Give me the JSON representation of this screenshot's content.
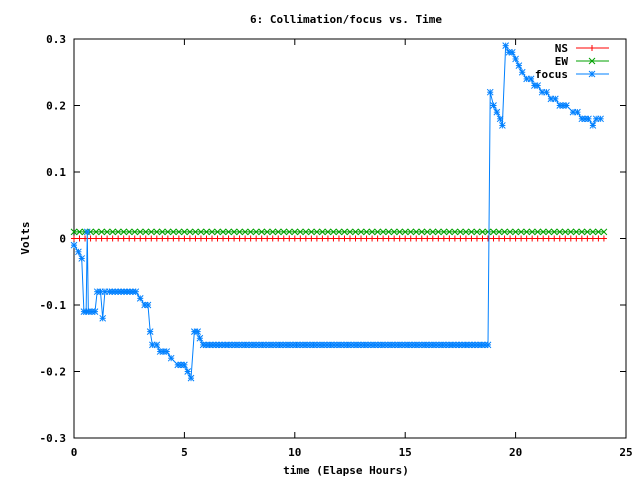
{
  "chart_data": {
    "type": "line",
    "title": "6: Collimation/focus vs. Time",
    "xlabel": "time (Elapse Hours)",
    "ylabel": "Volts",
    "xlim": [
      0,
      25
    ],
    "ylim": [
      -0.3,
      0.3
    ],
    "xticks": [
      0,
      5,
      10,
      15,
      20,
      25
    ],
    "yticks": [
      -0.3,
      -0.2,
      -0.1,
      0,
      0.1,
      0.2,
      0.3
    ],
    "xtick_labels": [
      "0",
      "5",
      "10",
      "15",
      "20",
      "25"
    ],
    "ytick_labels": [
      "-0.3",
      "-0.2",
      "-0.1",
      "0",
      "0.1",
      "0.2",
      "0.3"
    ],
    "legend_position": "top-right",
    "grid": false,
    "series": [
      {
        "name": "NS",
        "color": "#ff0000",
        "marker": "plus",
        "points": [
          [
            0,
            0
          ],
          [
            24,
            0
          ]
        ]
      },
      {
        "name": "EW",
        "color": "#00a000",
        "marker": "cross",
        "points": [
          [
            0,
            0.01
          ],
          [
            24,
            0.01
          ]
        ]
      },
      {
        "name": "focus",
        "color": "#0080ff",
        "marker": "star",
        "points": [
          [
            0,
            -0.01
          ],
          [
            0.2,
            -0.02
          ],
          [
            0.35,
            -0.03
          ],
          [
            0.45,
            -0.11
          ],
          [
            0.55,
            -0.11
          ],
          [
            0.6,
            0.01
          ],
          [
            0.65,
            -0.11
          ],
          [
            0.8,
            -0.11
          ],
          [
            0.95,
            -0.11
          ],
          [
            1.05,
            -0.08
          ],
          [
            1.2,
            -0.08
          ],
          [
            1.3,
            -0.12
          ],
          [
            1.4,
            -0.08
          ],
          [
            1.6,
            -0.08
          ],
          [
            2.0,
            -0.08
          ],
          [
            2.4,
            -0.08
          ],
          [
            2.8,
            -0.08
          ],
          [
            3.0,
            -0.09
          ],
          [
            3.2,
            -0.1
          ],
          [
            3.35,
            -0.1
          ],
          [
            3.45,
            -0.14
          ],
          [
            3.55,
            -0.16
          ],
          [
            3.75,
            -0.16
          ],
          [
            3.9,
            -0.17
          ],
          [
            4.2,
            -0.17
          ],
          [
            4.4,
            -0.18
          ],
          [
            4.7,
            -0.19
          ],
          [
            5.0,
            -0.19
          ],
          [
            5.15,
            -0.2
          ],
          [
            5.3,
            -0.21
          ],
          [
            5.45,
            -0.14
          ],
          [
            5.6,
            -0.14
          ],
          [
            5.7,
            -0.15
          ],
          [
            5.85,
            -0.16
          ],
          [
            7,
            -0.16
          ],
          [
            9,
            -0.16
          ],
          [
            11,
            -0.16
          ],
          [
            13,
            -0.16
          ],
          [
            15,
            -0.16
          ],
          [
            17,
            -0.16
          ],
          [
            18.75,
            -0.16
          ],
          [
            18.85,
            0.22
          ],
          [
            19.0,
            0.2
          ],
          [
            19.15,
            0.19
          ],
          [
            19.3,
            0.18
          ],
          [
            19.4,
            0.17
          ],
          [
            19.55,
            0.29
          ],
          [
            19.7,
            0.28
          ],
          [
            19.85,
            0.28
          ],
          [
            20.0,
            0.27
          ],
          [
            20.15,
            0.26
          ],
          [
            20.3,
            0.25
          ],
          [
            20.5,
            0.24
          ],
          [
            20.7,
            0.24
          ],
          [
            20.85,
            0.23
          ],
          [
            21.0,
            0.23
          ],
          [
            21.2,
            0.22
          ],
          [
            21.4,
            0.22
          ],
          [
            21.6,
            0.21
          ],
          [
            21.8,
            0.21
          ],
          [
            22.0,
            0.2
          ],
          [
            22.3,
            0.2
          ],
          [
            22.6,
            0.19
          ],
          [
            22.8,
            0.19
          ],
          [
            23.0,
            0.18
          ],
          [
            23.3,
            0.18
          ],
          [
            23.5,
            0.17
          ],
          [
            23.65,
            0.18
          ],
          [
            23.85,
            0.18
          ]
        ]
      }
    ]
  }
}
